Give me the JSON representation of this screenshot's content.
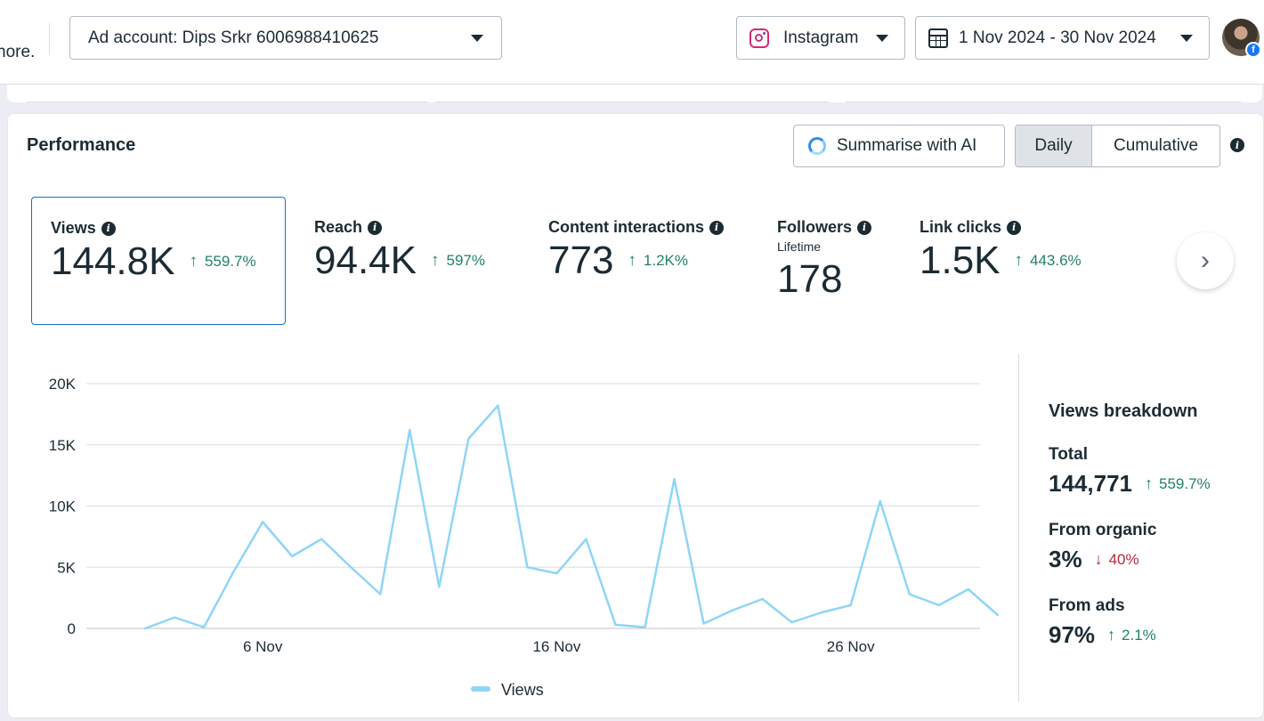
{
  "topbar": {
    "left_fragment": "nore.",
    "ad_account_label": "Ad account: Dips Srkr 6006988410625",
    "platform_label": "Instagram",
    "date_range_label": "1 Nov 2024 - 30 Nov 2024"
  },
  "performance": {
    "title": "Performance",
    "summarise_label": "Summarise with AI",
    "daily_label": "Daily",
    "cumulative_label": "Cumulative"
  },
  "metrics": [
    {
      "label": "Views",
      "value": "144.8K",
      "change": "559.7%",
      "direction": "up"
    },
    {
      "label": "Reach",
      "value": "94.4K",
      "change": "597%",
      "direction": "up"
    },
    {
      "label": "Content interactions",
      "value": "773",
      "change": "1.2K%",
      "direction": "up"
    },
    {
      "label": "Followers",
      "sublabel": "Lifetime",
      "value": "178"
    },
    {
      "label": "Link clicks",
      "value": "1.5K",
      "change": "443.6%",
      "direction": "up"
    }
  ],
  "chart_data": {
    "type": "line",
    "title": "",
    "xlabel": "",
    "ylabel": "",
    "x": [
      2,
      3,
      4,
      5,
      6,
      7,
      8,
      9,
      10,
      11,
      12,
      13,
      14,
      15,
      16,
      17,
      18,
      19,
      20,
      21,
      22,
      23,
      24,
      25,
      26,
      27,
      28,
      29,
      30,
      31
    ],
    "x_tick_labels": [
      {
        "x": 6,
        "label": "6 Nov"
      },
      {
        "x": 16,
        "label": "16 Nov"
      },
      {
        "x": 26,
        "label": "26 Nov"
      }
    ],
    "y_ticks": [
      0,
      5000,
      10000,
      15000,
      20000
    ],
    "y_tick_labels": [
      "0",
      "5K",
      "10K",
      "15K",
      "20K"
    ],
    "ylim": [
      0,
      20000
    ],
    "grid": true,
    "legend": "bottom-center",
    "series": [
      {
        "name": "Views",
        "color": "#8fd5f7",
        "values": [
          0,
          900,
          100,
          4600,
          8700,
          5900,
          7300,
          5000,
          2800,
          16200,
          3400,
          15500,
          18200,
          5000,
          4500,
          7300,
          300,
          100,
          12200,
          400,
          1500,
          2400,
          500,
          1300,
          1900,
          10400,
          2800,
          1900,
          3200,
          1100
        ]
      }
    ]
  },
  "breakdown": {
    "title": "Views breakdown",
    "total_label": "Total",
    "total_value": "144,771",
    "total_change": "559.7%",
    "organic_label": "From organic",
    "organic_value": "3%",
    "organic_change": "40%",
    "ads_label": "From ads",
    "ads_value": "97%",
    "ads_change": "2.1%"
  },
  "colors": {
    "accent": "#1a6fcc",
    "positive": "#21845d",
    "negative": "#b0283f",
    "line": "#8fd5f7"
  }
}
